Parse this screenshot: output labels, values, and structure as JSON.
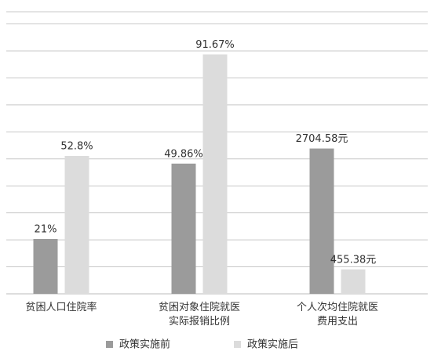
{
  "chart_data": {
    "type": "bar",
    "categories": [
      "贫困人口住院率",
      "贫困对象住院就医实际报销比例",
      "个人次均住院就医费用支出"
    ],
    "category_axes": [
      "y",
      "y",
      "y2"
    ],
    "series": [
      {
        "name": "政策实施前",
        "color": "#9b9b9b",
        "values": [
          21,
          49.86,
          2704.58
        ],
        "value_labels": [
          "21%",
          "49.86%",
          "2704.58元"
        ]
      },
      {
        "name": "政策实施后",
        "color": "#dcdcdc",
        "values": [
          52.8,
          91.67,
          455.38
        ],
        "value_labels": [
          "52.8%",
          "91.67%",
          "455.38元"
        ]
      }
    ],
    "ylim": [
      0,
      108
    ],
    "y2lim": [
      0,
      5250
    ],
    "grid": true,
    "legend": "bottom"
  }
}
